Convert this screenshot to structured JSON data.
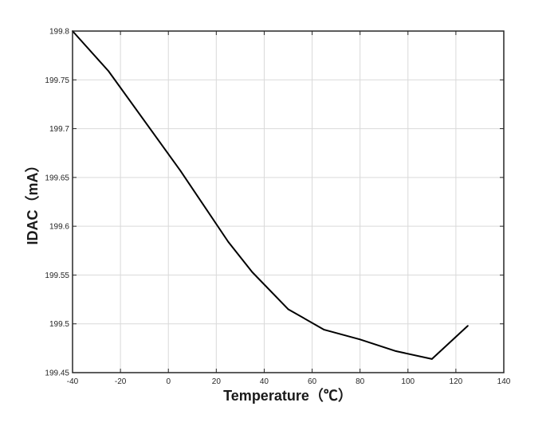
{
  "chart_data": {
    "type": "line",
    "xlabel": "Temperature（℃）",
    "ylabel": "IDAC（mA）",
    "xlim": [
      -40,
      140
    ],
    "ylim": [
      199.45,
      199.8
    ],
    "xticks": [
      -40,
      -20,
      0,
      20,
      40,
      60,
      80,
      100,
      120,
      140
    ],
    "yticks": [
      199.45,
      199.5,
      199.55,
      199.6,
      199.65,
      199.7,
      199.75,
      199.8
    ],
    "xtick_labels": [
      "-40",
      "-20",
      "0",
      "20",
      "40",
      "60",
      "80",
      "100",
      "120",
      "140"
    ],
    "ytick_labels": [
      "199.45",
      "199.5",
      "199.55",
      "199.6",
      "199.65",
      "199.7",
      "199.75",
      "199.8"
    ],
    "grid": true,
    "series": [
      {
        "color": "#000000",
        "x": [
          -40,
          -25,
          5,
          25,
          35,
          50,
          65,
          80,
          95,
          110,
          125
        ],
        "y": [
          199.8,
          199.759,
          199.657,
          199.584,
          199.553,
          199.515,
          199.494,
          199.484,
          199.472,
          199.464,
          199.498
        ]
      }
    ]
  }
}
